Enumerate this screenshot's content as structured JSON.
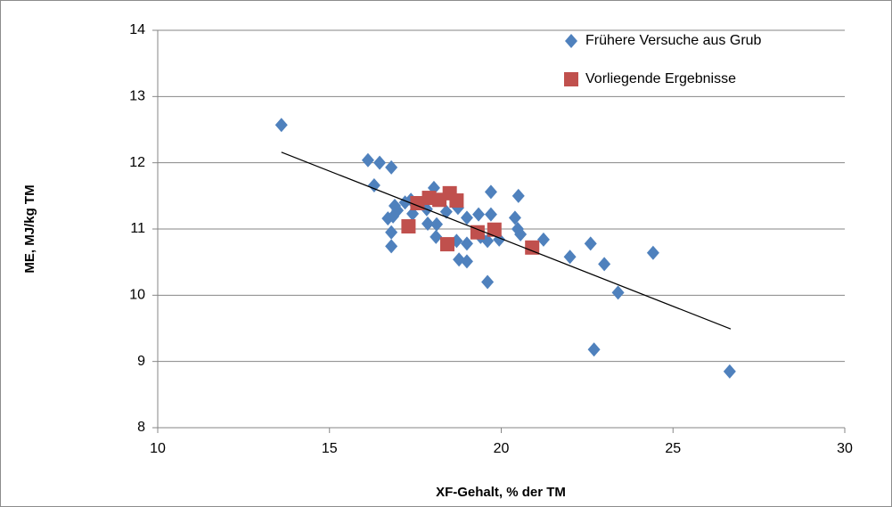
{
  "chart_data": {
    "type": "scatter",
    "xlabel": "XF-Gehalt, % der TM",
    "ylabel": "ME, MJ/kg TM",
    "xlim": [
      10,
      30
    ],
    "xticks": [
      10,
      15,
      20,
      25,
      30
    ],
    "ylim": [
      8,
      14
    ],
    "yticks": [
      8,
      9,
      10,
      11,
      12,
      13,
      14
    ],
    "grid": true,
    "legend": "upper right",
    "series": [
      {
        "name": "Frühere Versuche aus Grub",
        "color": "#4f81bd",
        "marker": "diamond",
        "x": [
          13.6,
          16.12,
          16.46,
          16.8,
          16.3,
          18.04,
          19.7,
          20.5,
          17.37,
          17.2,
          16.9,
          16.98,
          17.83,
          16.85,
          16.7,
          17.42,
          18.4,
          18.74,
          19.34,
          19.7,
          19.0,
          20.4,
          17.86,
          18.12,
          16.8,
          18.1,
          18.7,
          19.0,
          19.4,
          19.6,
          19.94,
          20.48,
          20.56,
          21.23,
          16.8,
          18.77,
          19.0,
          22.0,
          22.6,
          23.0,
          24.42,
          19.6,
          23.4,
          22.7,
          26.65
        ],
        "values": [
          12.57,
          12.04,
          12.0,
          11.93,
          11.66,
          11.62,
          11.56,
          11.5,
          11.44,
          11.4,
          11.35,
          11.28,
          11.3,
          11.19,
          11.16,
          11.23,
          11.26,
          11.32,
          11.22,
          11.22,
          11.17,
          11.17,
          11.08,
          11.07,
          10.95,
          10.88,
          10.82,
          10.78,
          10.88,
          10.82,
          10.84,
          11.0,
          10.92,
          10.84,
          10.74,
          10.54,
          10.51,
          10.58,
          10.78,
          10.47,
          10.64,
          10.2,
          10.04,
          9.18,
          8.85
        ]
      },
      {
        "name": "Vorliegende Ergebnisse",
        "color": "#c0504d",
        "marker": "square",
        "x": [
          17.3,
          17.56,
          17.9,
          18.2,
          18.5,
          18.7,
          18.43,
          19.31,
          19.8,
          20.9
        ],
        "values": [
          11.04,
          11.39,
          11.47,
          11.44,
          11.54,
          11.43,
          10.77,
          10.95,
          10.99,
          10.72
        ]
      }
    ],
    "trendline": {
      "color": "#000000",
      "x": [
        13.6,
        26.68
      ],
      "values": [
        12.16,
        9.49
      ]
    }
  }
}
